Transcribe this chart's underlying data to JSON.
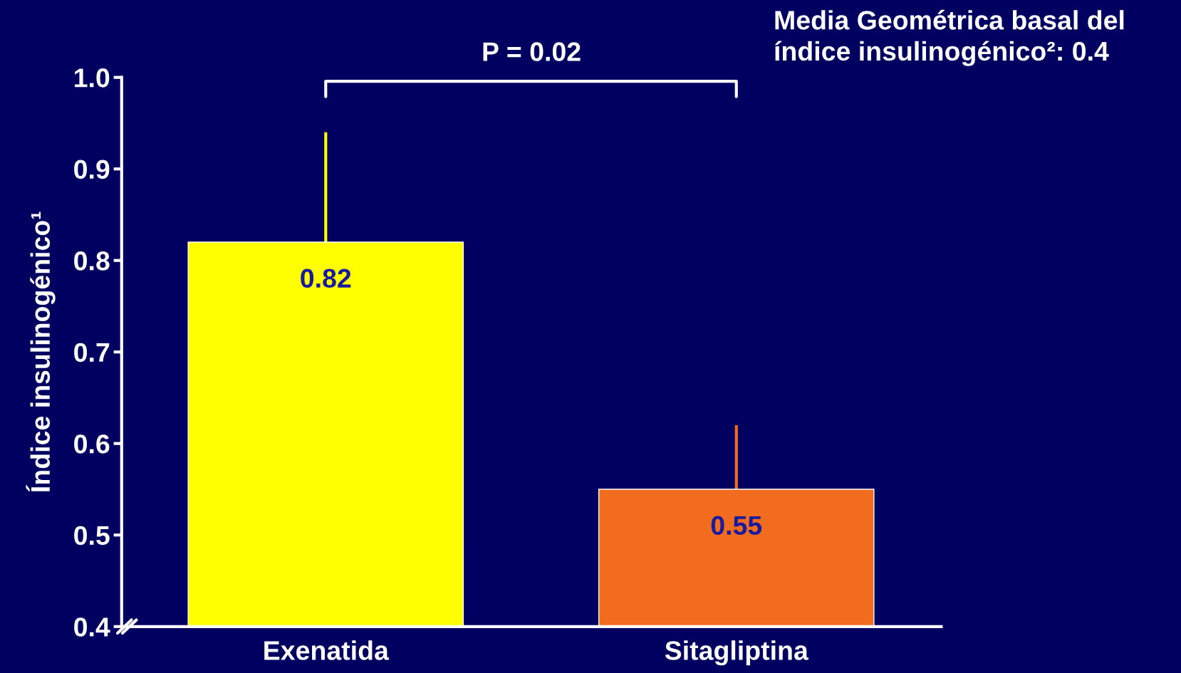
{
  "chart_data": {
    "type": "bar",
    "categories": [
      "Exenatida",
      "Sitagliptina"
    ],
    "values": [
      0.82,
      0.55
    ],
    "colors": [
      "#ffff00",
      "#f26c1f"
    ],
    "errors": [
      [
        0.82,
        0.94
      ],
      [
        0.55,
        0.62
      ]
    ],
    "data_labels": true,
    "ylabel": "Índice insulinogénico¹",
    "ylim": [
      0.4,
      1.0
    ],
    "yticks": [
      0.4,
      0.5,
      0.6,
      0.7,
      0.8,
      0.9,
      {
        "value": 1.0,
        "label": "1.0"
      }
    ],
    "grid": false,
    "annotations": [
      "P = 0.02",
      "Media Geométrica basal del índice insulinogénico²: 0.4"
    ]
  }
}
